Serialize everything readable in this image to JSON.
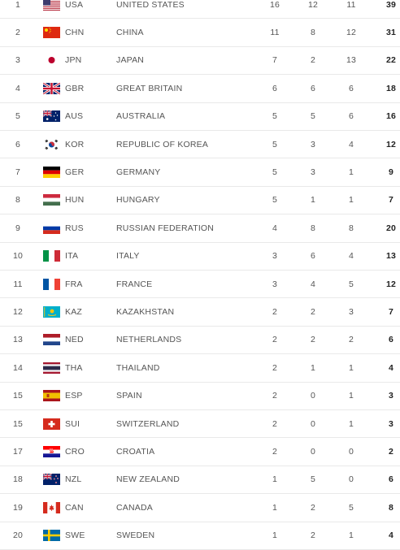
{
  "rows": [
    {
      "rank": "1",
      "flag": "us-flag-icon",
      "code": "USA",
      "name": "UNITED STATES",
      "gold": "16",
      "silver": "12",
      "bronze": "11",
      "total": "39"
    },
    {
      "rank": "2",
      "flag": "cn-flag-icon",
      "code": "CHN",
      "name": "CHINA",
      "gold": "11",
      "silver": "8",
      "bronze": "12",
      "total": "31"
    },
    {
      "rank": "3",
      "flag": "jp-flag-icon",
      "code": "JPN",
      "name": "JAPAN",
      "gold": "7",
      "silver": "2",
      "bronze": "13",
      "total": "22"
    },
    {
      "rank": "4",
      "flag": "gb-flag-icon",
      "code": "GBR",
      "name": "GREAT BRITAIN",
      "gold": "6",
      "silver": "6",
      "bronze": "6",
      "total": "18"
    },
    {
      "rank": "5",
      "flag": "au-flag-icon",
      "code": "AUS",
      "name": "AUSTRALIA",
      "gold": "5",
      "silver": "5",
      "bronze": "6",
      "total": "16"
    },
    {
      "rank": "6",
      "flag": "kr-flag-icon",
      "code": "KOR",
      "name": "REPUBLIC OF KOREA",
      "gold": "5",
      "silver": "3",
      "bronze": "4",
      "total": "12"
    },
    {
      "rank": "7",
      "flag": "de-flag-icon",
      "code": "GER",
      "name": "GERMANY",
      "gold": "5",
      "silver": "3",
      "bronze": "1",
      "total": "9"
    },
    {
      "rank": "8",
      "flag": "hu-flag-icon",
      "code": "HUN",
      "name": "HUNGARY",
      "gold": "5",
      "silver": "1",
      "bronze": "1",
      "total": "7"
    },
    {
      "rank": "9",
      "flag": "ru-flag-icon",
      "code": "RUS",
      "name": "RUSSIAN FEDERATION",
      "gold": "4",
      "silver": "8",
      "bronze": "8",
      "total": "20"
    },
    {
      "rank": "10",
      "flag": "it-flag-icon",
      "code": "ITA",
      "name": "ITALY",
      "gold": "3",
      "silver": "6",
      "bronze": "4",
      "total": "13"
    },
    {
      "rank": "11",
      "flag": "fr-flag-icon",
      "code": "FRA",
      "name": "FRANCE",
      "gold": "3",
      "silver": "4",
      "bronze": "5",
      "total": "12"
    },
    {
      "rank": "12",
      "flag": "kz-flag-icon",
      "code": "KAZ",
      "name": "KAZAKHSTAN",
      "gold": "2",
      "silver": "2",
      "bronze": "3",
      "total": "7"
    },
    {
      "rank": "13",
      "flag": "nl-flag-icon",
      "code": "NED",
      "name": "NETHERLANDS",
      "gold": "2",
      "silver": "2",
      "bronze": "2",
      "total": "6"
    },
    {
      "rank": "14",
      "flag": "th-flag-icon",
      "code": "THA",
      "name": "THAILAND",
      "gold": "2",
      "silver": "1",
      "bronze": "1",
      "total": "4"
    },
    {
      "rank": "15",
      "flag": "es-flag-icon",
      "code": "ESP",
      "name": "SPAIN",
      "gold": "2",
      "silver": "0",
      "bronze": "1",
      "total": "3"
    },
    {
      "rank": "15",
      "flag": "ch-flag-icon",
      "code": "SUI",
      "name": "SWITZERLAND",
      "gold": "2",
      "silver": "0",
      "bronze": "1",
      "total": "3"
    },
    {
      "rank": "17",
      "flag": "hr-flag-icon",
      "code": "CRO",
      "name": "CROATIA",
      "gold": "2",
      "silver": "0",
      "bronze": "0",
      "total": "2"
    },
    {
      "rank": "18",
      "flag": "nz-flag-icon",
      "code": "NZL",
      "name": "NEW ZEALAND",
      "gold": "1",
      "silver": "5",
      "bronze": "0",
      "total": "6"
    },
    {
      "rank": "19",
      "flag": "ca-flag-icon",
      "code": "CAN",
      "name": "CANADA",
      "gold": "1",
      "silver": "2",
      "bronze": "5",
      "total": "8"
    },
    {
      "rank": "20",
      "flag": "se-flag-icon",
      "code": "SWE",
      "name": "SWEDEN",
      "gold": "1",
      "silver": "2",
      "bronze": "1",
      "total": "4"
    }
  ]
}
